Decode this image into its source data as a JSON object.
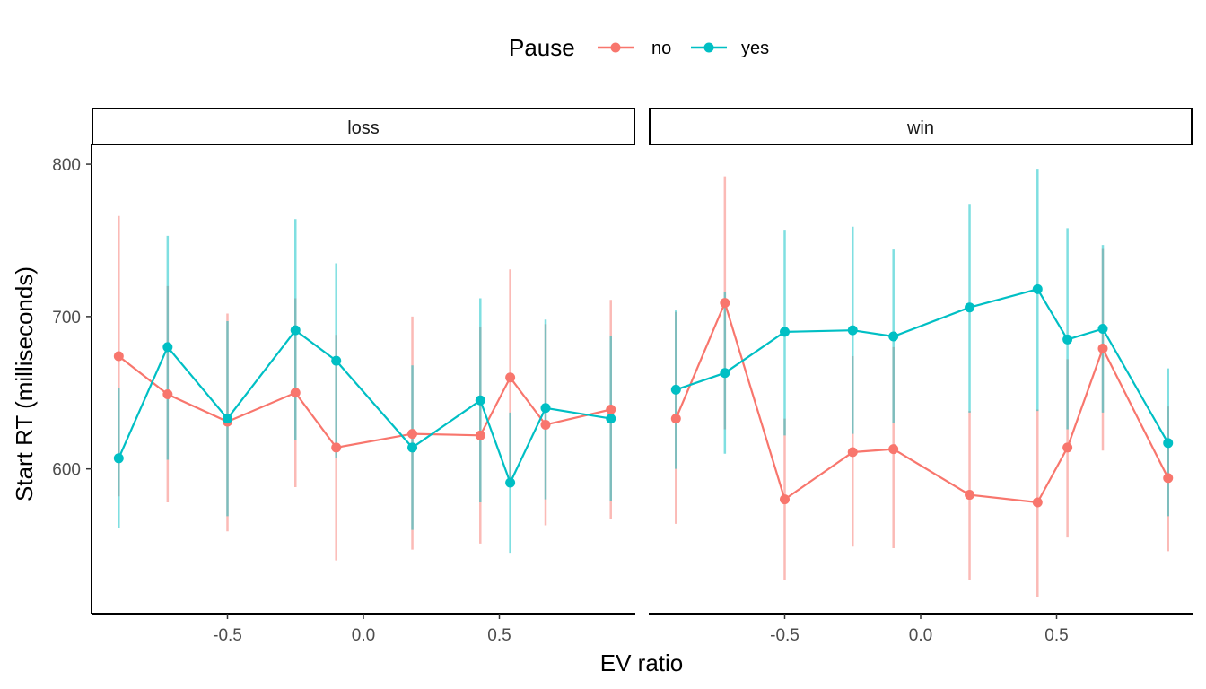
{
  "legend": {
    "title": "Pause",
    "entries": [
      {
        "label": "no",
        "color": "#F8766D"
      },
      {
        "label": "yes",
        "color": "#00BFC4"
      }
    ]
  },
  "chart_data": {
    "type": "line",
    "xlabel": "EV ratio",
    "ylabel": "Start RT (milliseconds)",
    "xlim": [
      -1.0,
      1.0
    ],
    "ylim": [
      505,
      813
    ],
    "x_ticks": [
      -0.5,
      0.0,
      0.5
    ],
    "x_tick_labels": [
      "-0.5",
      "0.0",
      "0.5"
    ],
    "y_ticks": [
      600,
      700,
      800
    ],
    "y_tick_labels": [
      "600",
      "700",
      "800"
    ],
    "legend_position": "top",
    "x": [
      -0.9,
      -0.72,
      -0.5,
      -0.25,
      -0.1,
      0.18,
      0.43,
      0.54,
      0.67,
      0.91
    ],
    "panels": [
      {
        "label": "loss",
        "series": [
          {
            "name": "no",
            "color": "#F8766D",
            "y": [
              674,
              649,
              631,
              650,
              614,
              623,
              622,
              660,
              629,
              639
            ],
            "lower": [
              582,
              578,
              559,
              588,
              540,
              547,
              551,
              590,
              563,
              567
            ],
            "upper": [
              766,
              720,
              702,
              712,
              688,
              700,
              693,
              731,
              695,
              711
            ]
          },
          {
            "name": "yes",
            "color": "#00BFC4",
            "y": [
              607,
              680,
              633,
              691,
              671,
              614,
              645,
              591,
              640,
              633
            ],
            "lower": [
              561,
              606,
              569,
              619,
              607,
              560,
              578,
              545,
              580,
              579
            ],
            "upper": [
              653,
              753,
              697,
              764,
              735,
              668,
              712,
              637,
              698,
              687
            ]
          }
        ]
      },
      {
        "label": "win",
        "series": [
          {
            "name": "no",
            "color": "#F8766D",
            "y": [
              633,
              709,
              580,
              611,
              613,
              583,
              578,
              614,
              679,
              594
            ],
            "lower": [
              564,
              626,
              527,
              549,
              548,
              527,
              516,
              555,
              612,
              546
            ],
            "upper": [
              703,
              792,
              633,
              674,
              680,
              638,
              639,
              672,
              745,
              641
            ]
          },
          {
            "name": "yes",
            "color": "#00BFC4",
            "y": [
              652,
              663,
              690,
              691,
              687,
              706,
              718,
              685,
              692,
              617
            ],
            "lower": [
              600,
              610,
              622,
              623,
              630,
              637,
              638,
              626,
              637,
              569
            ],
            "upper": [
              704,
              716,
              757,
              759,
              744,
              774,
              797,
              758,
              747,
              666
            ]
          }
        ]
      }
    ]
  }
}
